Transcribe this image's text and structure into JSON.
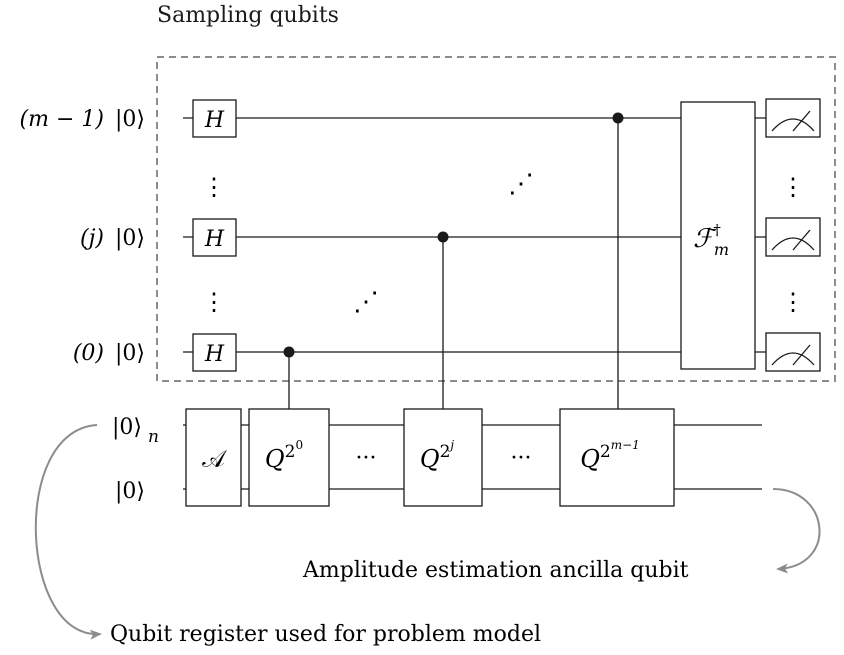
{
  "title": "Sampling qubits",
  "qubits": {
    "top": {
      "index": "(m − 1)",
      "ket": "|0⟩"
    },
    "middle": {
      "index": "(j)",
      "ket": "|0⟩"
    },
    "bottom": {
      "index": "(0)",
      "ket": "|0⟩"
    }
  },
  "register": {
    "ket": "|0⟩",
    "subscript": "n"
  },
  "ancilla": {
    "ket": "|0⟩"
  },
  "gates": {
    "hadamard": "H",
    "state_prep": "𝒜",
    "grover_base": "Q",
    "exp_first": "0",
    "exp_middle": "j",
    "exp_last": "m−1",
    "inverse_qft": "ℱ",
    "inverse_qft_sup": "†",
    "inverse_qft_sub": "m",
    "ellipsis": "···",
    "vdots": "⋮",
    "ddots": "⋰"
  },
  "annotations": {
    "ancilla_label": "Amplitude estimation ancilla qubit",
    "register_label": "Qubit register used for problem model"
  },
  "colors": {
    "line": "#1a1a1a",
    "dashed_box": "#8c8c8c",
    "arrow": "#8c8c8c"
  }
}
